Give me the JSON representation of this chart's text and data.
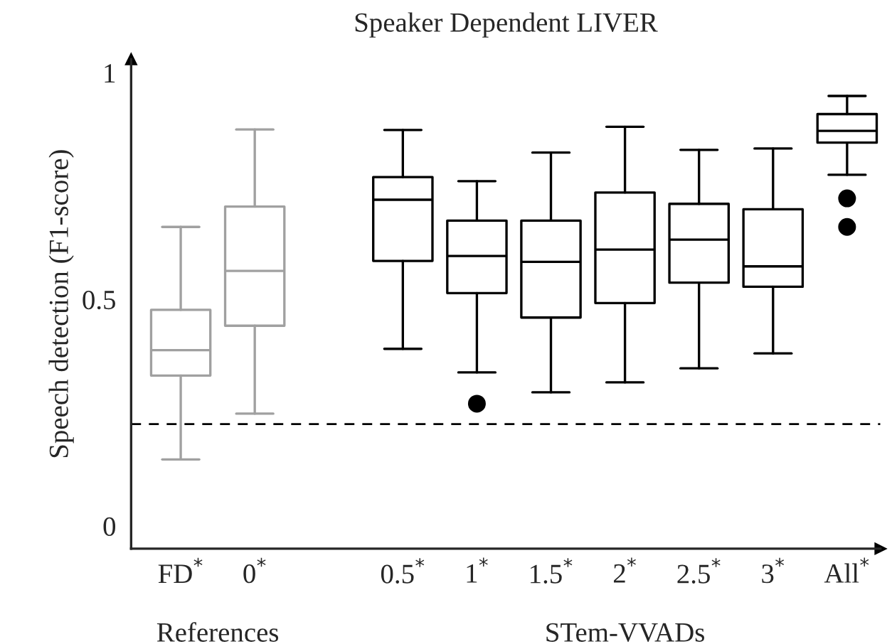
{
  "chart_data": {
    "type": "box",
    "title": "Speaker Dependent LIVER",
    "ylabel": "Speech detection (F1-score)",
    "categories": [
      "FD$^{*}$",
      "0$^{*}$",
      null,
      "0.5$^{*}$",
      "1$^{*}$",
      "1.5$^{*}$",
      "2$^{*}$",
      "2.5$^{*}$",
      "3$^{*}$",
      "All$^{*}$"
    ],
    "colors": [
      "#a0a0a0",
      "#a0a0a0",
      null,
      "#000000",
      "#000000",
      "#000000",
      "#000000",
      "#000000",
      "#000000",
      "#000000"
    ],
    "boxes": [
      {
        "low": 0.147,
        "q1": 0.332,
        "median": 0.388,
        "q3": 0.477,
        "high": 0.66
      },
      {
        "low": 0.248,
        "q1": 0.442,
        "median": 0.563,
        "q3": 0.705,
        "high": 0.875
      },
      null,
      {
        "low": 0.391,
        "q1": 0.585,
        "median": 0.72,
        "q3": 0.77,
        "high": 0.874
      },
      {
        "low": 0.339,
        "q1": 0.514,
        "median": 0.596,
        "q3": 0.674,
        "high": 0.761,
        "outliers": [
          0.27
        ]
      },
      {
        "low": 0.295,
        "q1": 0.46,
        "median": 0.583,
        "q3": 0.674,
        "high": 0.824
      },
      {
        "low": 0.317,
        "q1": 0.492,
        "median": 0.61,
        "q3": 0.736,
        "high": 0.881
      },
      {
        "low": 0.348,
        "q1": 0.537,
        "median": 0.632,
        "q3": 0.711,
        "high": 0.83
      },
      {
        "low": 0.381,
        "q1": 0.528,
        "median": 0.573,
        "q3": 0.699,
        "high": 0.833
      },
      {
        "low": 0.775,
        "q1": 0.846,
        "median": 0.872,
        "q3": 0.909,
        "high": 0.949,
        "outliers": [
          0.723,
          0.66
        ]
      }
    ],
    "ylim": [
      -0.05,
      1.03
    ],
    "yticks": [
      0,
      0.5,
      1
    ],
    "ref_lines": [
      {
        "axis": "y",
        "value": 0.225,
        "label": null,
        "color": "#000000",
        "line_style": "dashed"
      }
    ],
    "annotations": [
      "References",
      "STem-VVADs"
    ],
    "grid": false,
    "legend": false
  }
}
